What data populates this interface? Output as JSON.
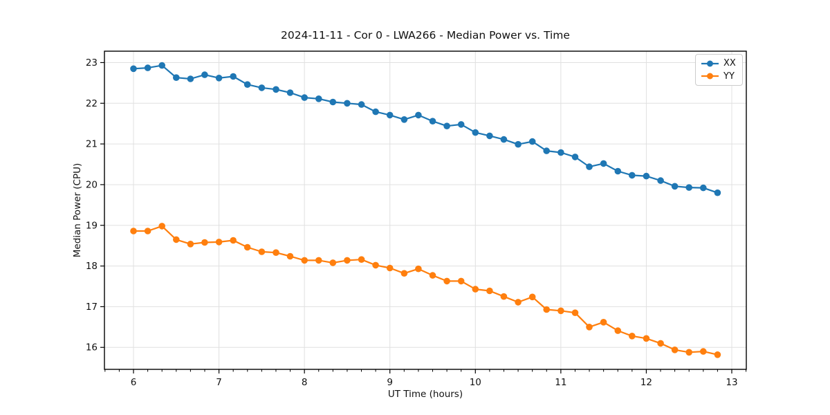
{
  "title": "2024-11-11 - Cor 0 - LWA266 - Median Power vs. Time",
  "colors": {
    "grid": "#e0e0e0",
    "spine": "#000000",
    "background": "#ffffff"
  },
  "chart_data": {
    "type": "line",
    "title": "2024-11-11 - Cor 0 - LWA266 - Median Power vs. Time",
    "xlabel": "UT Time (hours)",
    "ylabel": "Median Power (CPU)",
    "x": [
      6.0,
      6.167,
      6.333,
      6.5,
      6.667,
      6.833,
      7.0,
      7.167,
      7.333,
      7.5,
      7.667,
      7.833,
      8.0,
      8.167,
      8.333,
      8.5,
      8.667,
      8.833,
      9.0,
      9.167,
      9.333,
      9.5,
      9.667,
      9.833,
      10.0,
      10.167,
      10.333,
      10.5,
      10.667,
      10.833,
      11.0,
      11.167,
      11.333,
      11.5,
      11.667,
      11.833,
      12.0,
      12.167,
      12.333,
      12.5,
      12.667,
      12.833
    ],
    "series": [
      {
        "name": "XX",
        "color": "#1f77b4",
        "marker": "circle",
        "values": [
          22.85,
          22.87,
          22.93,
          22.63,
          22.6,
          22.7,
          22.62,
          22.66,
          22.46,
          22.38,
          22.34,
          22.26,
          22.14,
          22.11,
          22.03,
          22.0,
          21.97,
          21.79,
          21.71,
          21.6,
          21.71,
          21.56,
          21.44,
          21.48,
          21.28,
          21.2,
          21.11,
          20.99,
          21.06,
          20.83,
          20.79,
          20.68,
          20.44,
          20.52,
          20.33,
          20.23,
          20.21,
          20.1,
          19.96,
          19.93,
          19.92,
          19.8
        ]
      },
      {
        "name": "YY",
        "color": "#ff7f0e",
        "marker": "circle",
        "values": [
          18.86,
          18.86,
          18.98,
          18.65,
          18.54,
          18.58,
          18.59,
          18.63,
          18.46,
          18.35,
          18.33,
          18.24,
          18.14,
          18.14,
          18.08,
          18.14,
          18.16,
          18.02,
          17.95,
          17.82,
          17.93,
          17.77,
          17.63,
          17.63,
          17.43,
          17.39,
          17.25,
          17.11,
          17.24,
          16.93,
          16.9,
          16.85,
          16.5,
          16.62,
          16.41,
          16.28,
          16.22,
          16.1,
          15.94,
          15.88,
          15.9,
          15.82
        ]
      }
    ],
    "x_ticks": [
      6,
      7,
      8,
      9,
      10,
      11,
      12,
      13
    ],
    "y_ticks": [
      16,
      17,
      18,
      19,
      20,
      21,
      22,
      23
    ],
    "xlim": [
      5.66,
      13.17
    ],
    "ylim": [
      15.46,
      23.28
    ],
    "minor_ticks_x_per_hour": 6,
    "grid": true,
    "legend": {
      "position": "upper right",
      "entries": [
        "XX",
        "YY"
      ]
    }
  }
}
